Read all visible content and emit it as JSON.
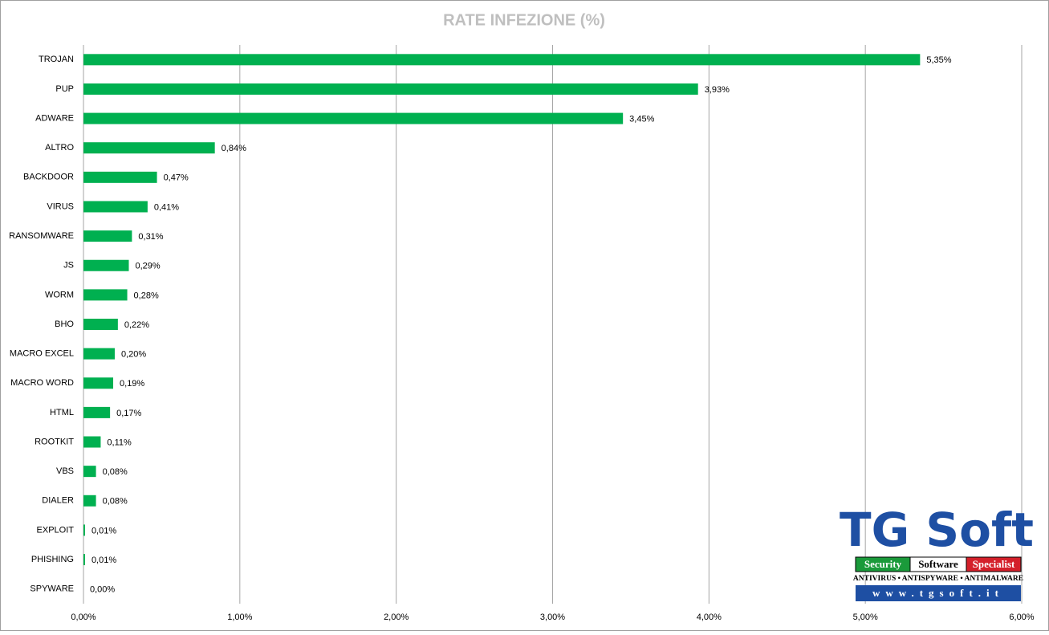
{
  "chart_data": {
    "type": "hbar",
    "title": "RATE INFEZIONE (%)",
    "categories": [
      "TROJAN",
      "PUP",
      "ADWARE",
      "ALTRO",
      "BACKDOOR",
      "VIRUS",
      "RANSOMWARE",
      "JS",
      "WORM",
      "BHO",
      "MACRO EXCEL",
      "MACRO WORD",
      "HTML",
      "ROOTKIT",
      "VBS",
      "DIALER",
      "EXPLOIT",
      "PHISHING",
      "SPYWARE"
    ],
    "values": [
      5.35,
      3.93,
      3.45,
      0.84,
      0.47,
      0.41,
      0.31,
      0.29,
      0.28,
      0.22,
      0.2,
      0.19,
      0.17,
      0.11,
      0.08,
      0.08,
      0.01,
      0.01,
      0.0
    ],
    "value_labels": [
      "5,35%",
      "3,93%",
      "3,45%",
      "0,84%",
      "0,47%",
      "0,41%",
      "0,31%",
      "0,29%",
      "0,28%",
      "0,22%",
      "0,20%",
      "0,19%",
      "0,17%",
      "0,11%",
      "0,08%",
      "0,08%",
      "0,01%",
      "0,01%",
      "0,00%"
    ],
    "color": "#00b050",
    "xlim": [
      0,
      6
    ],
    "xticks": [
      {
        "value": 0,
        "label": "0,00%"
      },
      {
        "value": 1,
        "label": "1,00%"
      },
      {
        "value": 2,
        "label": "2,00%"
      },
      {
        "value": 3,
        "label": "3,00%"
      },
      {
        "value": 4,
        "label": "4,00%"
      },
      {
        "value": 5,
        "label": "5,00%"
      },
      {
        "value": 6,
        "label": "6,00%"
      }
    ],
    "grid": true
  },
  "logo": {
    "name": "TG Soft",
    "tag1": "Security",
    "tag2": "Software",
    "tag3": "Specialist",
    "line": "ANTIVIRUS • ANTISPYWARE • ANTIMALWARE",
    "url": "www.tgsoft.it"
  }
}
